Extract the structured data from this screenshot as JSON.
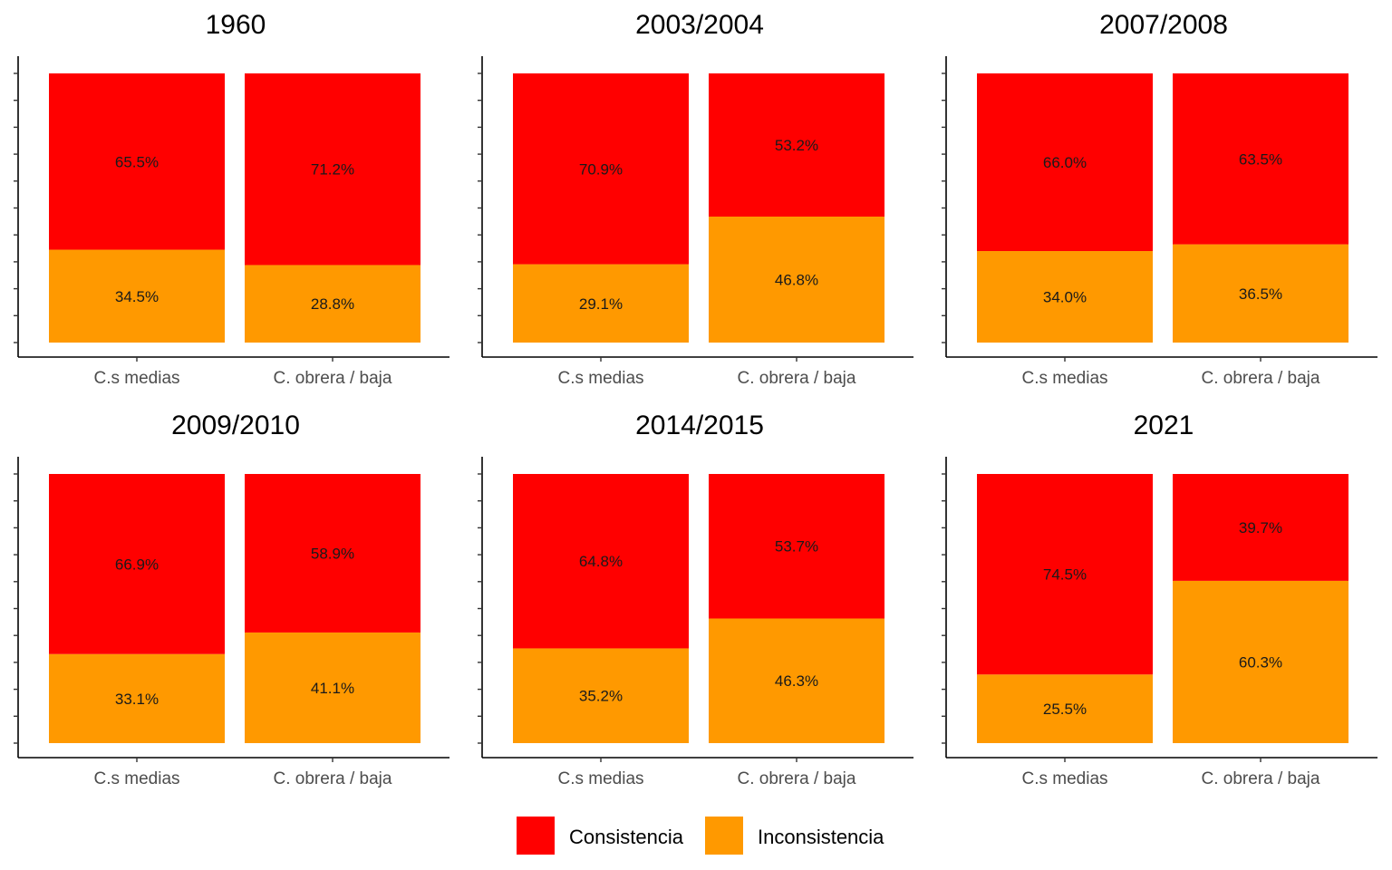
{
  "chart_data": [
    {
      "type": "bar",
      "stacked": true,
      "normalized": true,
      "title": "1960",
      "categories": [
        "C.s medias",
        "C. obrera / baja"
      ],
      "series": [
        {
          "name": "Consistencia",
          "values": [
            65.5,
            71.2
          ],
          "labels": [
            "65.5%",
            "71.2%"
          ],
          "color": "#FF0000"
        },
        {
          "name": "Inconsistencia",
          "values": [
            34.5,
            28.8
          ],
          "labels": [
            "34.5%",
            "28.8%"
          ],
          "color": "#FF9900"
        }
      ],
      "ylim": [
        0,
        100
      ]
    },
    {
      "type": "bar",
      "stacked": true,
      "normalized": true,
      "title": "2003/2004",
      "categories": [
        "C.s medias",
        "C. obrera / baja"
      ],
      "series": [
        {
          "name": "Consistencia",
          "values": [
            70.9,
            53.2
          ],
          "labels": [
            "70.9%",
            "53.2%"
          ],
          "color": "#FF0000"
        },
        {
          "name": "Inconsistencia",
          "values": [
            29.1,
            46.8
          ],
          "labels": [
            "29.1%",
            "46.8%"
          ],
          "color": "#FF9900"
        }
      ],
      "ylim": [
        0,
        100
      ]
    },
    {
      "type": "bar",
      "stacked": true,
      "normalized": true,
      "title": "2007/2008",
      "categories": [
        "C.s medias",
        "C. obrera / baja"
      ],
      "series": [
        {
          "name": "Consistencia",
          "values": [
            66.0,
            63.5
          ],
          "labels": [
            "66.0%",
            "63.5%"
          ],
          "color": "#FF0000"
        },
        {
          "name": "Inconsistencia",
          "values": [
            34.0,
            36.5
          ],
          "labels": [
            "34.0%",
            "36.5%"
          ],
          "color": "#FF9900"
        }
      ],
      "ylim": [
        0,
        100
      ]
    },
    {
      "type": "bar",
      "stacked": true,
      "normalized": true,
      "title": "2009/2010",
      "categories": [
        "C.s medias",
        "C. obrera / baja"
      ],
      "series": [
        {
          "name": "Consistencia",
          "values": [
            66.9,
            58.9
          ],
          "labels": [
            "66.9%",
            "58.9%"
          ],
          "color": "#FF0000"
        },
        {
          "name": "Inconsistencia",
          "values": [
            33.1,
            41.1
          ],
          "labels": [
            "33.1%",
            "41.1%"
          ],
          "color": "#FF9900"
        }
      ],
      "ylim": [
        0,
        100
      ]
    },
    {
      "type": "bar",
      "stacked": true,
      "normalized": true,
      "title": "2014/2015",
      "categories": [
        "C.s medias",
        "C. obrera / baja"
      ],
      "series": [
        {
          "name": "Consistencia",
          "values": [
            64.8,
            53.7
          ],
          "labels": [
            "64.8%",
            "53.7%"
          ],
          "color": "#FF0000"
        },
        {
          "name": "Inconsistencia",
          "values": [
            35.2,
            46.3
          ],
          "labels": [
            "35.2%",
            "46.3%"
          ],
          "color": "#FF9900"
        }
      ],
      "ylim": [
        0,
        100
      ]
    },
    {
      "type": "bar",
      "stacked": true,
      "normalized": true,
      "title": "2021",
      "categories": [
        "C.s medias",
        "C. obrera / baja"
      ],
      "series": [
        {
          "name": "Consistencia",
          "values": [
            74.5,
            39.7
          ],
          "labels": [
            "74.5%",
            "39.7%"
          ],
          "color": "#FF0000"
        },
        {
          "name": "Inconsistencia",
          "values": [
            25.5,
            60.3
          ],
          "labels": [
            "25.5%",
            "60.3%"
          ],
          "color": "#FF9900"
        }
      ],
      "ylim": [
        0,
        100
      ]
    }
  ],
  "legend": {
    "placement": "bottom",
    "items": [
      {
        "label": "Consistencia",
        "color": "#FF0000"
      },
      {
        "label": "Inconsistencia",
        "color": "#FF9900"
      }
    ]
  }
}
